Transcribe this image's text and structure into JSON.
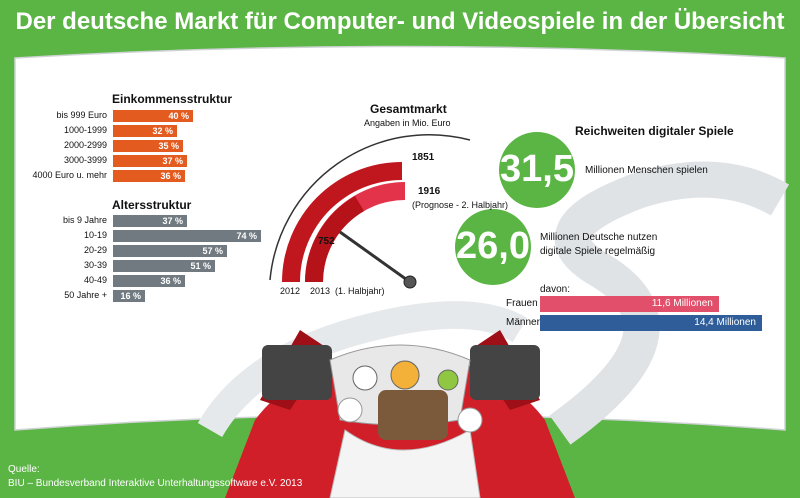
{
  "title": "Der deutsche Markt für Computer- und Videospiele in der Übersicht",
  "colors": {
    "green": "#5bb545",
    "orange": "#e35b1f",
    "gray": "#707a80",
    "darkred": "#c0161d",
    "red": "#e3334a",
    "pink": "#e24f6a",
    "blue": "#2e5d9a"
  },
  "chart_data": [
    {
      "type": "bar",
      "title": "Einkommensstruktur",
      "categories": [
        "bis 999 Euro",
        "1000-1999",
        "2000-2999",
        "3000-3999",
        "4000 Euro u. mehr"
      ],
      "values": [
        40,
        32,
        35,
        37,
        36
      ],
      "value_labels": [
        "40 %",
        "32 %",
        "35 %",
        "37 %",
        "36 %"
      ],
      "orientation": "horizontal",
      "xlim": [
        0,
        100
      ]
    },
    {
      "type": "bar",
      "title": "Altersstruktur",
      "categories": [
        "bis 9 Jahre",
        "10-19",
        "20-29",
        "30-39",
        "40-49",
        "50 Jahre +"
      ],
      "values": [
        37,
        74,
        57,
        51,
        36,
        16
      ],
      "value_labels": [
        "37 %",
        "74 %",
        "57 %",
        "51 %",
        "36 %",
        "16 %"
      ],
      "orientation": "horizontal",
      "xlim": [
        0,
        100
      ]
    },
    {
      "type": "bar",
      "title": "Gesamtmarkt",
      "subtitle": "Angaben in Mio. Euro",
      "categories": [
        "2012",
        "2013"
      ],
      "values": [
        1851,
        1916
      ],
      "value_labels": [
        "1851",
        "1916"
      ],
      "labels_2013": {
        "prognose_note": "(Prognose - 2. Halbjahr)",
        "h1_value": 752,
        "h1_value_label": "752",
        "h1_note": "(1. Halbjahr)"
      },
      "style": "radial gauge"
    },
    {
      "type": "bar",
      "title": "Reichweiten digitaler Spiele",
      "categories": [
        "Frauen",
        "Männer"
      ],
      "values": [
        11.6,
        14.4
      ],
      "value_labels": [
        "11,6 Millionen",
        "14,4 Millionen"
      ],
      "orientation": "horizontal",
      "xlim": [
        0,
        14.4
      ]
    }
  ],
  "income_title": "Einkommensstruktur",
  "age_title": "Altersstruktur",
  "market": {
    "title": "Gesamtmarkt",
    "subtitle": "Angaben in Mio. Euro",
    "v2012": "1851",
    "v2013": "1916",
    "note2013": "(Prognose - 2. Halbjahr)",
    "h1": "752",
    "year2012": "2012",
    "year2013": "2013",
    "h1_note": "(1. Halbjahr)"
  },
  "reach": {
    "title": "Reichweiten digitaler Spiele",
    "big1": "31,5",
    "text1": "Millionen Menschen spielen",
    "big2": "26,0",
    "text2a": "Millionen Deutsche nutzen",
    "text2b": "digitale Spiele regelmäßig",
    "davon": "davon:",
    "women_label": "Frauen",
    "men_label": "Männer"
  },
  "source": {
    "label": "Quelle:",
    "text": "BIU – Bundesverband Interaktive Unterhaltungssoftware e.V. 2013"
  }
}
